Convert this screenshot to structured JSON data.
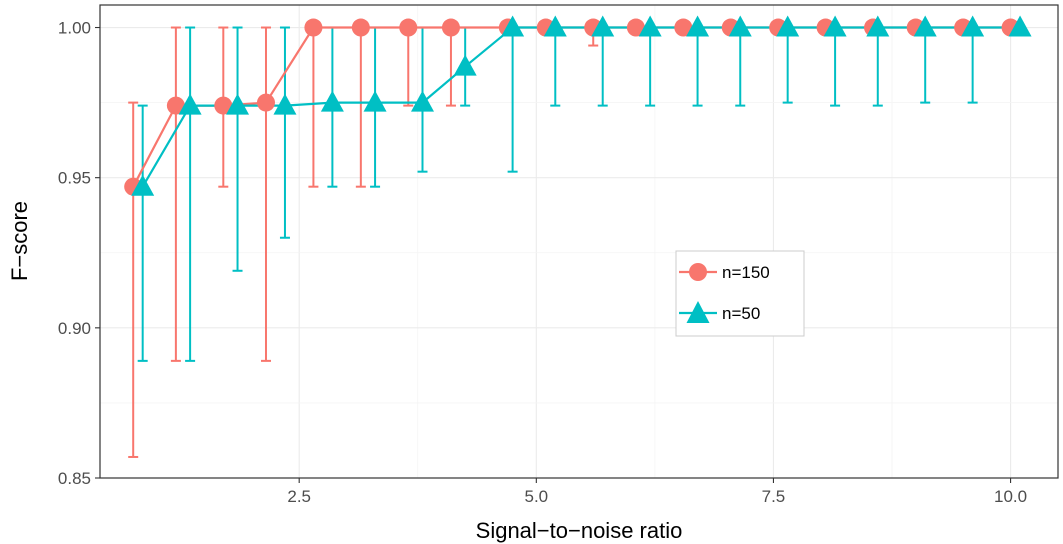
{
  "chart_data": {
    "type": "line",
    "xlabel": "Signal−to−noise ratio",
    "ylabel": "F−score",
    "xlim": [
      0.4,
      10.5
    ],
    "ylim": [
      0.85,
      1.0075
    ],
    "x_ticks": [
      2.5,
      5.0,
      7.5,
      10.0
    ],
    "x_tick_labels": [
      "2.5",
      "5.0",
      "7.5",
      "10.0"
    ],
    "y_ticks": [
      0.85,
      0.9,
      0.95,
      1.0
    ],
    "y_tick_labels": [
      "0.85",
      "0.90",
      "0.95",
      "1.00"
    ],
    "grid": true,
    "legend_position": "center-right",
    "series": [
      {
        "name": "n=150",
        "color": "#F8766D",
        "marker": "circle",
        "x": [
          0.75,
          1.2,
          1.7,
          2.15,
          2.65,
          3.15,
          3.65,
          4.1,
          4.7,
          5.1,
          5.6,
          6.05,
          6.55,
          7.05,
          7.55,
          8.05,
          8.55,
          9.0,
          9.5,
          10.0
        ],
        "y": [
          0.947,
          0.974,
          0.974,
          0.975,
          1.0,
          1.0,
          1.0,
          1.0,
          1.0,
          1.0,
          1.0,
          1.0,
          1.0,
          1.0,
          1.0,
          1.0,
          1.0,
          1.0,
          1.0,
          1.0
        ],
        "lower": [
          0.857,
          0.889,
          0.947,
          0.889,
          0.947,
          0.947,
          0.974,
          0.974,
          1.0,
          1.0,
          0.994,
          1.0,
          1.0,
          1.0,
          1.0,
          1.0,
          1.0,
          1.0,
          1.0,
          1.0
        ],
        "upper": [
          0.975,
          1.0,
          1.0,
          1.0,
          1.0,
          1.0,
          1.0,
          1.0,
          1.0,
          1.0,
          1.0,
          1.0,
          1.0,
          1.0,
          1.0,
          1.0,
          1.0,
          1.0,
          1.0,
          1.0
        ]
      },
      {
        "name": "n=50",
        "color": "#00BFC4",
        "marker": "triangle",
        "x": [
          0.85,
          1.35,
          1.85,
          2.35,
          2.85,
          3.3,
          3.8,
          4.25,
          4.75,
          5.2,
          5.7,
          6.2,
          6.7,
          7.15,
          7.65,
          8.15,
          8.6,
          9.1,
          9.6,
          10.1
        ],
        "y": [
          0.947,
          0.974,
          0.974,
          0.974,
          0.975,
          0.975,
          0.975,
          0.987,
          1.0,
          1.0,
          1.0,
          1.0,
          1.0,
          1.0,
          1.0,
          1.0,
          1.0,
          1.0,
          1.0,
          1.0
        ],
        "lower": [
          0.889,
          0.889,
          0.919,
          0.93,
          0.947,
          0.947,
          0.952,
          0.974,
          0.952,
          0.974,
          0.974,
          0.974,
          0.974,
          0.974,
          0.975,
          0.974,
          0.974,
          0.975,
          0.975,
          1.0
        ],
        "upper": [
          0.974,
          1.0,
          1.0,
          1.0,
          1.0,
          1.0,
          1.0,
          1.0,
          1.0,
          1.0,
          1.0,
          1.0,
          1.0,
          1.0,
          1.0,
          1.0,
          1.0,
          1.0,
          1.0,
          1.0
        ]
      }
    ]
  }
}
